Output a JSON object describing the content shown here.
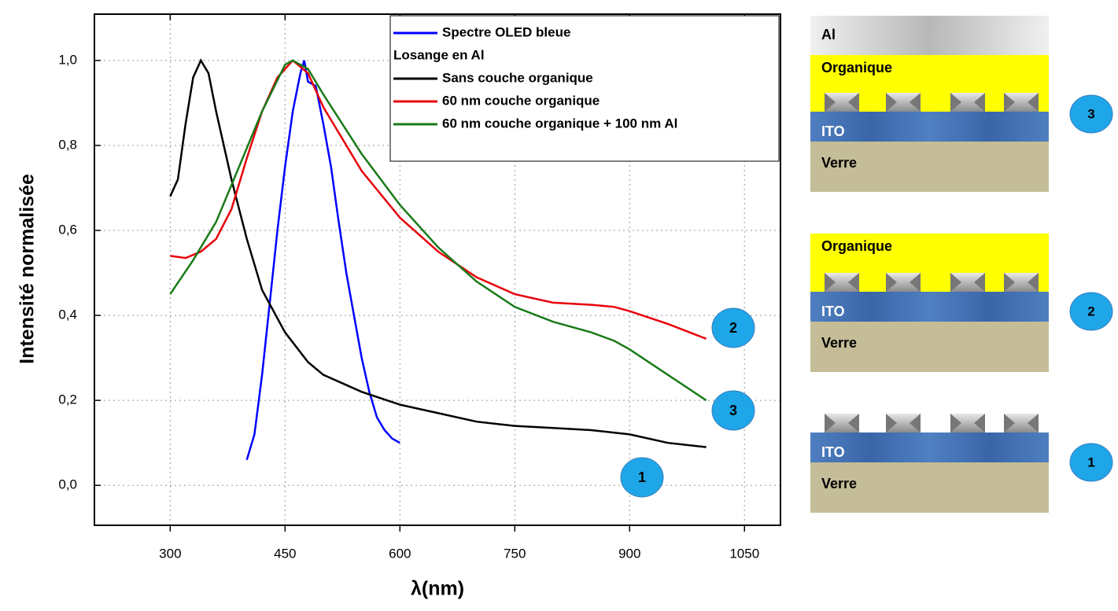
{
  "chart_data": {
    "type": "line",
    "xlabel": "λ(nm)",
    "ylabel": "Intensité normalisée",
    "xlim": [
      201,
      1097
    ],
    "ylim": [
      -0.094,
      1.109
    ],
    "xticks": [
      300,
      450,
      600,
      750,
      900,
      1050
    ],
    "yticks": [
      {
        "value": 0,
        "label": "0,0"
      },
      {
        "value": 0.2,
        "label": "0,2"
      },
      {
        "value": 0.4,
        "label": "0,4"
      },
      {
        "value": 0.6,
        "label": "0,6"
      },
      {
        "value": 0.8,
        "label": "0,8"
      },
      {
        "value": 1.0,
        "label": "1,0"
      }
    ],
    "grid": true,
    "legend_heading": "Losange en Al",
    "series": [
      {
        "name": "Spectre OLED bleue",
        "color": "#0000ff",
        "x": [
          400,
          410,
          420,
          430,
          440,
          450,
          460,
          470,
          475,
          480,
          490,
          500,
          510,
          520,
          530,
          540,
          550,
          560,
          570,
          580,
          590,
          600
        ],
        "values": [
          0.06,
          0.12,
          0.26,
          0.43,
          0.6,
          0.75,
          0.88,
          0.97,
          1.0,
          0.95,
          0.94,
          0.85,
          0.75,
          0.62,
          0.5,
          0.4,
          0.3,
          0.22,
          0.16,
          0.13,
          0.11,
          0.1
        ]
      },
      {
        "name": "Sans couche organique",
        "color": "#000000",
        "x": [
          300,
          310,
          320,
          330,
          340,
          350,
          360,
          380,
          400,
          420,
          450,
          480,
          500,
          550,
          600,
          650,
          700,
          750,
          800,
          850,
          900,
          950,
          1000
        ],
        "values": [
          0.68,
          0.72,
          0.85,
          0.96,
          1.0,
          0.97,
          0.88,
          0.72,
          0.58,
          0.46,
          0.36,
          0.29,
          0.26,
          0.22,
          0.19,
          0.17,
          0.15,
          0.14,
          0.135,
          0.13,
          0.12,
          0.1,
          0.09
        ]
      },
      {
        "name": "60 nm couche organique",
        "color": "#e8000b",
        "x": [
          300,
          320,
          340,
          360,
          380,
          400,
          420,
          440,
          460,
          480,
          500,
          550,
          600,
          650,
          700,
          750,
          800,
          850,
          880,
          900,
          950,
          1000
        ],
        "values": [
          0.54,
          0.535,
          0.55,
          0.58,
          0.65,
          0.77,
          0.88,
          0.96,
          1.0,
          0.97,
          0.89,
          0.74,
          0.63,
          0.55,
          0.49,
          0.45,
          0.43,
          0.425,
          0.42,
          0.41,
          0.38,
          0.345
        ]
      },
      {
        "name": "60 nm couche organique + 100 nm Al",
        "color": "#1a7a1a",
        "x": [
          300,
          330,
          360,
          390,
          420,
          450,
          460,
          480,
          500,
          550,
          600,
          650,
          700,
          750,
          800,
          850,
          880,
          900,
          950,
          1000
        ],
        "values": [
          0.45,
          0.53,
          0.62,
          0.75,
          0.88,
          0.99,
          1.0,
          0.98,
          0.92,
          0.78,
          0.66,
          0.56,
          0.48,
          0.42,
          0.385,
          0.36,
          0.34,
          0.32,
          0.26,
          0.2
        ]
      }
    ],
    "annotations": [
      "2",
      "3",
      "1"
    ],
    "annotation_color": "#1ea6e8"
  },
  "diagram": {
    "stacks": [
      {
        "layers": [
          "Al",
          "Organique",
          "ITO",
          "Verre"
        ],
        "number": "3"
      },
      {
        "layers": [
          "Organique",
          "ITO",
          "Verre"
        ],
        "number": "2"
      },
      {
        "layers": [
          "ITO",
          "Verre"
        ],
        "number": "1"
      }
    ]
  }
}
